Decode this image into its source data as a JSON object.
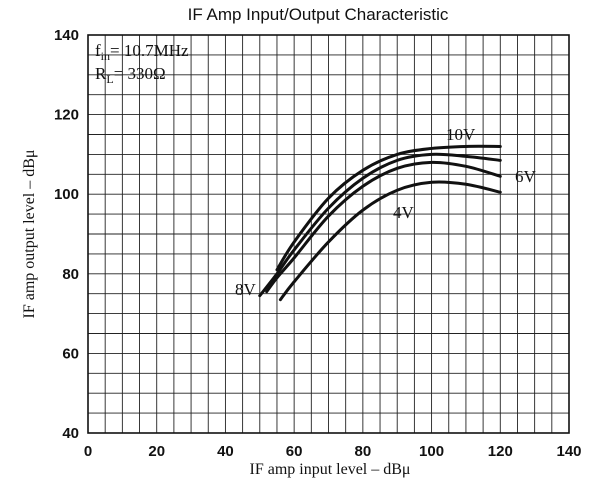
{
  "chart_data": {
    "type": "line",
    "title": "IF Amp Input/Output Characteristic",
    "xlabel": "IF amp input level  –  dBμ",
    "ylabel": "IF amp output level  –  dBμ",
    "xlim": [
      0,
      140
    ],
    "ylim": [
      40,
      140
    ],
    "xticks": [
      "0",
      "20",
      "40",
      "60",
      "80",
      "100",
      "120",
      "140"
    ],
    "yticks": [
      "140",
      "120",
      "100",
      "80",
      "60",
      "40"
    ],
    "grid": true,
    "annotations": {
      "fin": "f",
      "fin_sub": "in",
      "fin_value": "= 10.7MHz",
      "rl": "R",
      "rl_sub": "L",
      "rl_value": "= 330Ω"
    },
    "series": [
      {
        "name": "10V",
        "x": [
          55,
          60,
          70,
          80,
          90,
          100,
          110,
          120
        ],
        "y": [
          81,
          88,
          99,
          106,
          110,
          111.5,
          112,
          112
        ]
      },
      {
        "name": "8V",
        "x": [
          50,
          55,
          60,
          70,
          80,
          90,
          100,
          110,
          120
        ],
        "y": [
          74.5,
          80,
          86,
          96.5,
          104,
          108.5,
          110,
          109.5,
          108.5
        ]
      },
      {
        "name": "6V",
        "x": [
          52,
          55,
          60,
          70,
          80,
          90,
          100,
          110,
          120
        ],
        "y": [
          75.5,
          79,
          84,
          94.5,
          102,
          106.5,
          108,
          107,
          104.5
        ]
      },
      {
        "name": "4V",
        "x": [
          56,
          60,
          70,
          80,
          90,
          100,
          110,
          120
        ],
        "y": [
          73.5,
          78,
          88,
          96,
          101,
          103,
          102.5,
          100.5
        ]
      }
    ]
  }
}
